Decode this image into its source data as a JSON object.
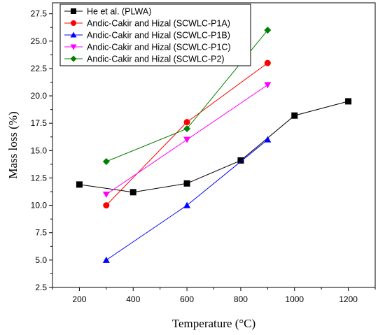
{
  "chart_data": {
    "type": "line",
    "xlabel": "Temperature (°C)",
    "ylabel": "Mass loss (%)",
    "xlim": [
      100,
      1300
    ],
    "ylim": [
      2.5,
      28.5
    ],
    "xticks": [
      200,
      400,
      600,
      800,
      1000,
      1200
    ],
    "yticks": [
      2.5,
      5.0,
      7.5,
      10.0,
      12.5,
      15.0,
      17.5,
      20.0,
      22.5,
      25.0,
      27.5
    ],
    "x_tick_labels": [
      "200",
      "400",
      "600",
      "800",
      "1000",
      "1200"
    ],
    "y_tick_labels": [
      "2.5",
      "5.0",
      "7.5",
      "10.0",
      "12.5",
      "15.0",
      "17.5",
      "20.0",
      "22.5",
      "25.0",
      "27.5"
    ],
    "grid": false,
    "legend_position": "top-left",
    "series": [
      {
        "name": "He et al. (PLWA)",
        "color": "#000000",
        "marker": "square",
        "x": [
          200,
          400,
          600,
          800,
          1000,
          1200
        ],
        "y": [
          11.9,
          11.2,
          12.0,
          14.1,
          18.2,
          19.5
        ]
      },
      {
        "name": "Andic-Cakir and Hizal (SCWLC-P1A)",
        "color": "#ff0000",
        "marker": "circle",
        "x": [
          300,
          600,
          900
        ],
        "y": [
          10.0,
          17.6,
          23.0
        ]
      },
      {
        "name": "Andic-Cakir and Hizal (SCWLC-P1B)",
        "color": "#0000ff",
        "marker": "triangle-up",
        "x": [
          300,
          600,
          900
        ],
        "y": [
          5.0,
          10.0,
          16.0
        ]
      },
      {
        "name": "Andic-Cakir and Hizal (SCWLC-P1C)",
        "color": "#ff00ff",
        "marker": "triangle-down",
        "x": [
          300,
          600,
          900
        ],
        "y": [
          11.0,
          16.0,
          21.0
        ]
      },
      {
        "name": "Andic-Cakir and Hizal (SCWLC-P2)",
        "color": "#008000",
        "marker": "diamond",
        "x": [
          300,
          600,
          900
        ],
        "y": [
          14.0,
          17.0,
          26.0
        ]
      }
    ]
  }
}
